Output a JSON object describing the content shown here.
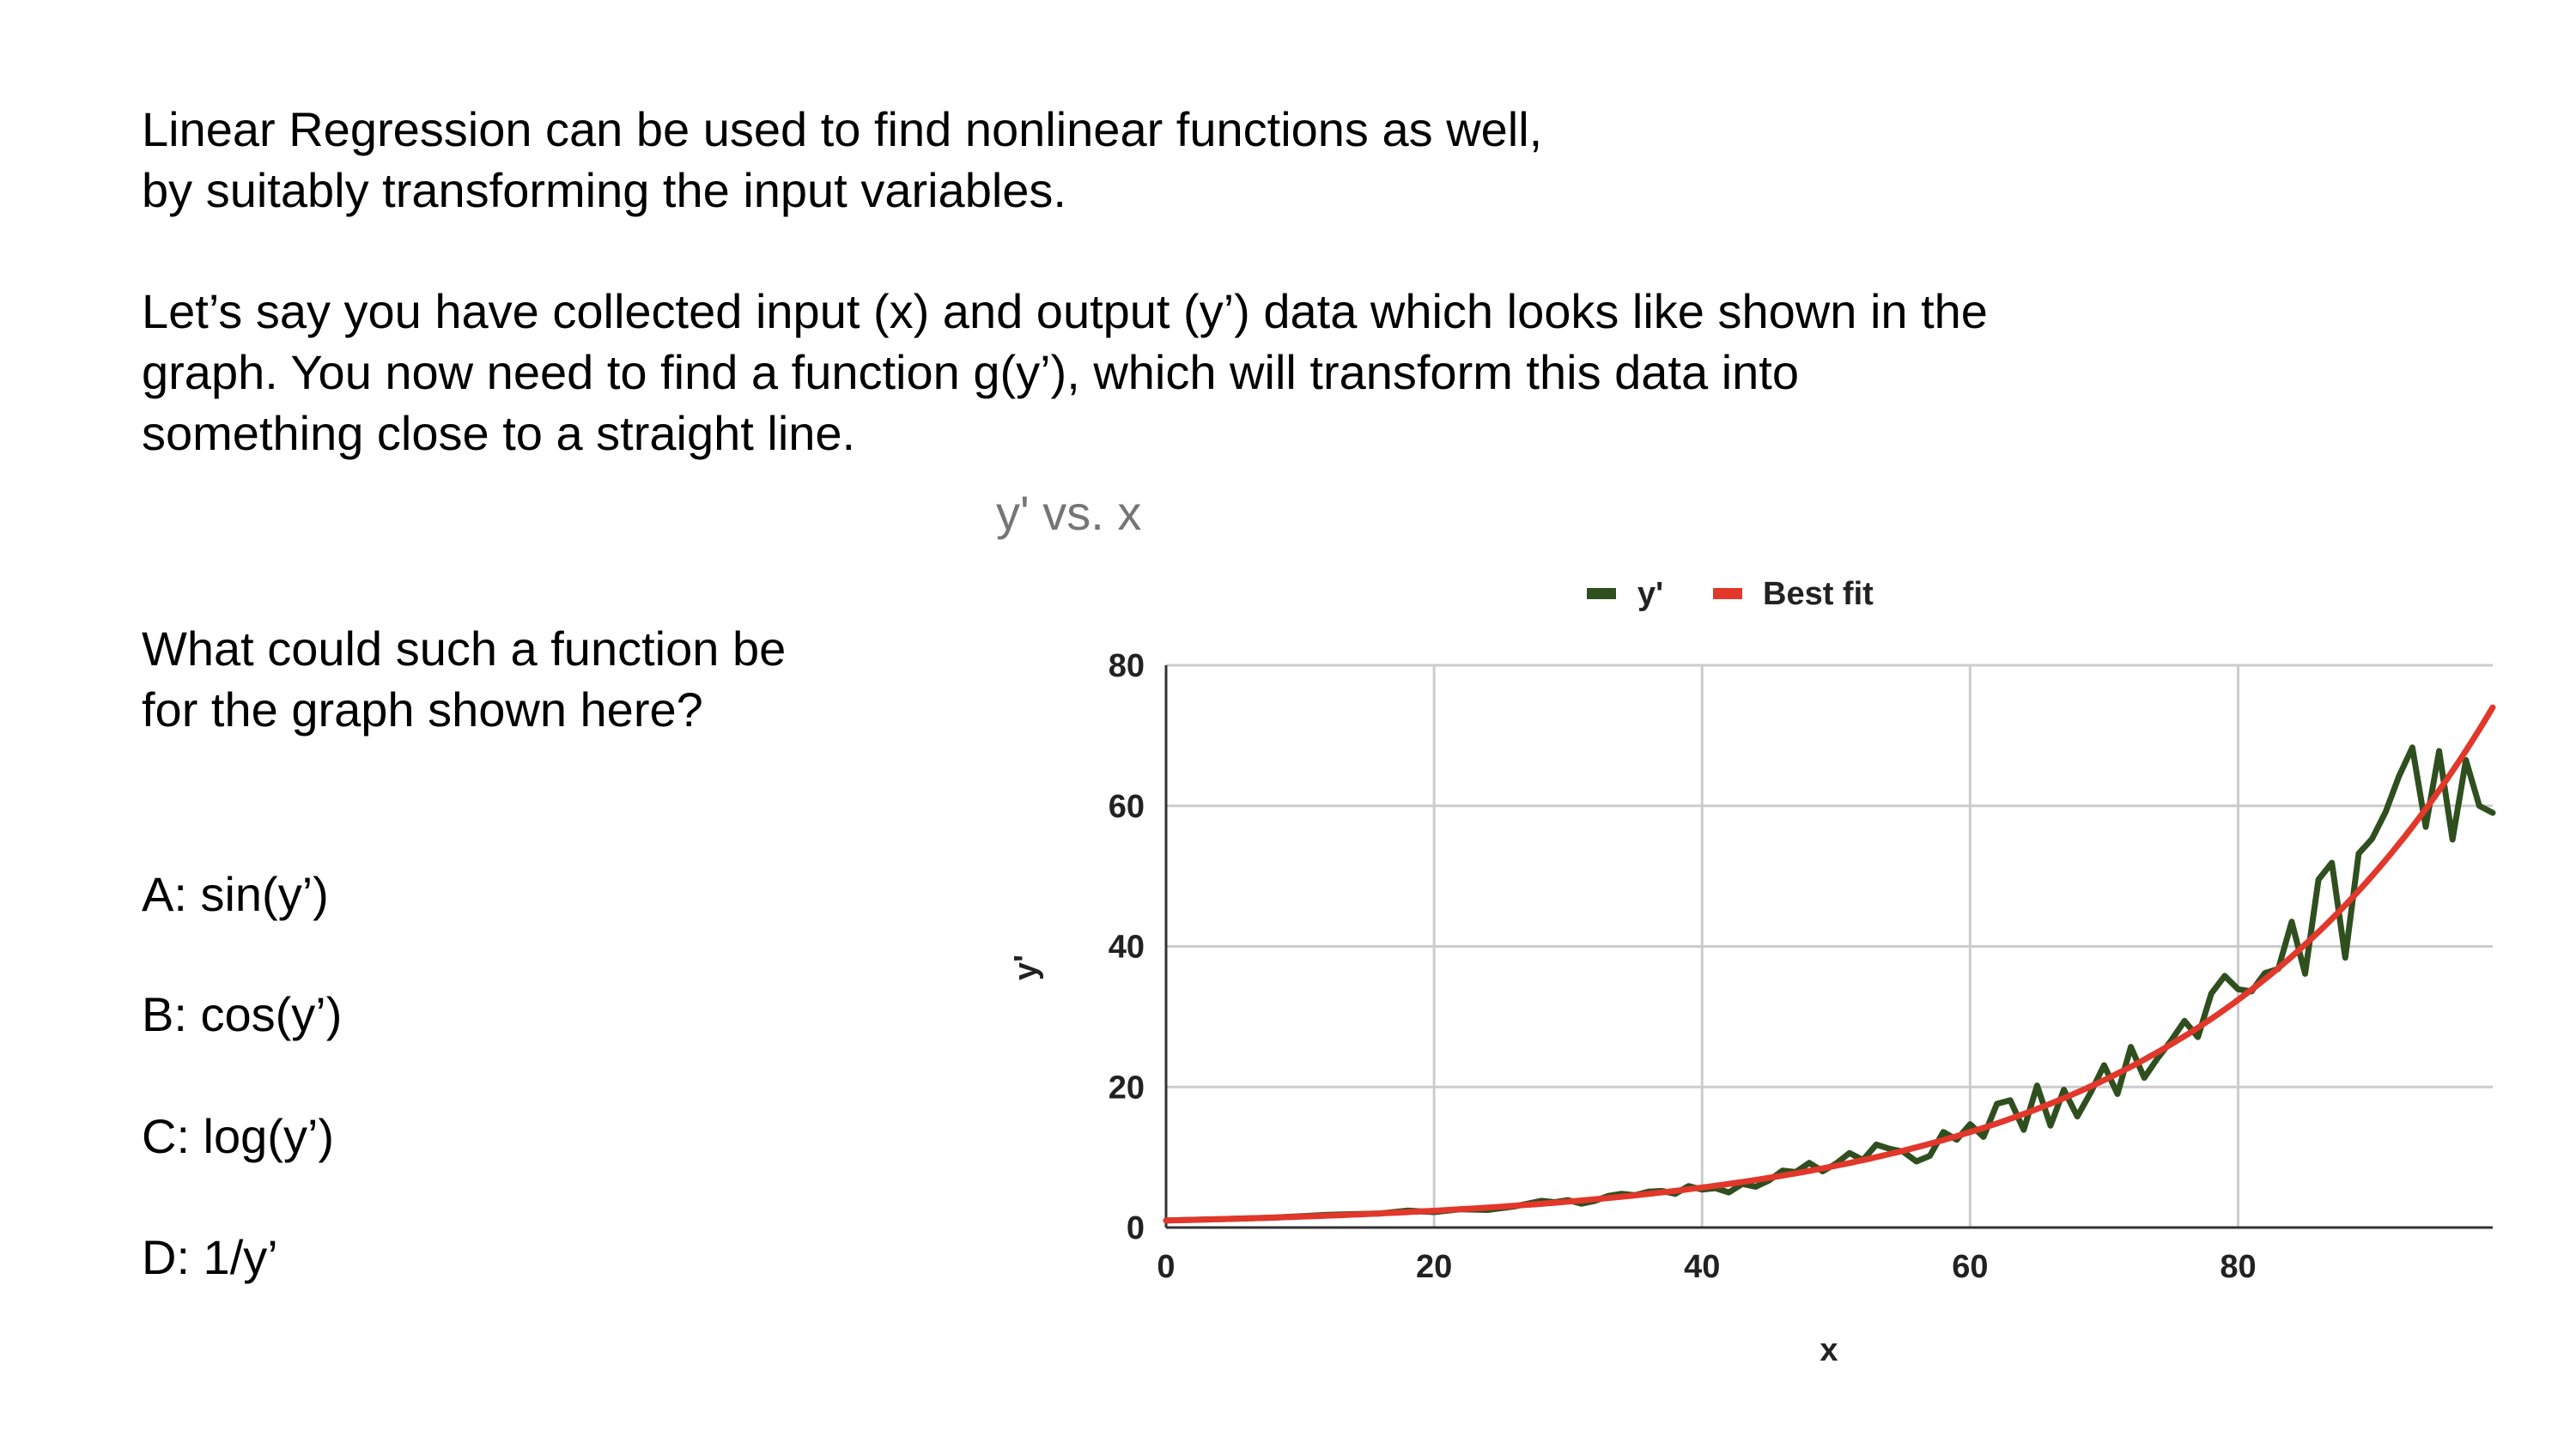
{
  "intro": {
    "lines": [
      "Linear Regression can be used to find nonlinear functions as well,",
      "by suitably transforming the input variables."
    ]
  },
  "task": {
    "lines": [
      "Let’s say you have collected input (x) and output (y’) data which looks like shown in the",
      "graph. You now need to find a function g(y’), which will transform this data into",
      "something close to a straight line."
    ]
  },
  "question": {
    "lines": [
      "What could such a function be",
      "for the graph shown here?"
    ]
  },
  "options": [
    "A: sin(y’)",
    "B: cos(y’)",
    "C: log(y’)",
    "D: 1/y’"
  ],
  "chart_data": {
    "type": "line",
    "title": "y' vs. x",
    "xlabel": "x",
    "ylabel": "y'",
    "xlim": [
      0,
      99
    ],
    "ylim": [
      0,
      80
    ],
    "x_ticks": [
      0,
      20,
      40,
      60,
      80
    ],
    "y_ticks": [
      0,
      20,
      40,
      60,
      80
    ],
    "grid": true,
    "legend_position": "top",
    "series": [
      {
        "name": "y'",
        "color": "#2f4f1f",
        "x": [
          0,
          2,
          4,
          6,
          8,
          10,
          12,
          14,
          16,
          18,
          20,
          22,
          24,
          26,
          28,
          29,
          30,
          31,
          32,
          33,
          34,
          35,
          36,
          37,
          38,
          39,
          40,
          41,
          42,
          43,
          44,
          45,
          46,
          47,
          48,
          49,
          50,
          51,
          52,
          53,
          54,
          55,
          56,
          57,
          58,
          59,
          60,
          61,
          62,
          63,
          64,
          65,
          66,
          67,
          68,
          69,
          70,
          71,
          72,
          73,
          74,
          75,
          76,
          77,
          78,
          79,
          80,
          81,
          82,
          83,
          84,
          85,
          86,
          87,
          88,
          89,
          90,
          91,
          92,
          93,
          94,
          95,
          96,
          97,
          98,
          99
        ],
        "y": [
          1.0,
          1.1,
          1.2,
          1.3,
          1.4,
          1.6,
          1.8,
          1.9,
          2.0,
          2.4,
          2.2,
          2.6,
          2.5,
          3.0,
          3.8,
          3.6,
          3.9,
          3.4,
          3.8,
          4.5,
          4.8,
          4.6,
          5.1,
          5.2,
          4.8,
          5.9,
          5.4,
          5.6,
          5.0,
          6.2,
          5.8,
          6.7,
          8.1,
          7.9,
          9.2,
          8.0,
          9.1,
          10.6,
          9.6,
          11.8,
          11.2,
          10.8,
          9.4,
          10.2,
          13.6,
          12.5,
          14.7,
          12.9,
          17.6,
          18.1,
          13.9,
          20.2,
          14.5,
          19.6,
          15.8,
          19.2,
          23.1,
          19.0,
          25.7,
          21.3,
          24.1,
          26.6,
          29.4,
          27.1,
          33.3,
          35.8,
          33.9,
          33.6,
          36.2,
          36.8,
          43.5,
          36.1,
          49.5,
          51.9,
          38.4,
          53.2,
          55.3,
          59.1,
          64.2,
          68.3,
          57.0,
          67.8,
          55.2,
          66.5,
          60.0,
          59.0
        ]
      },
      {
        "name": "Best fit",
        "color": "#e2372b",
        "curve": "exponential",
        "x_range": [
          0,
          99
        ],
        "y_start": 1.0,
        "y_end": 74.0
      }
    ]
  }
}
